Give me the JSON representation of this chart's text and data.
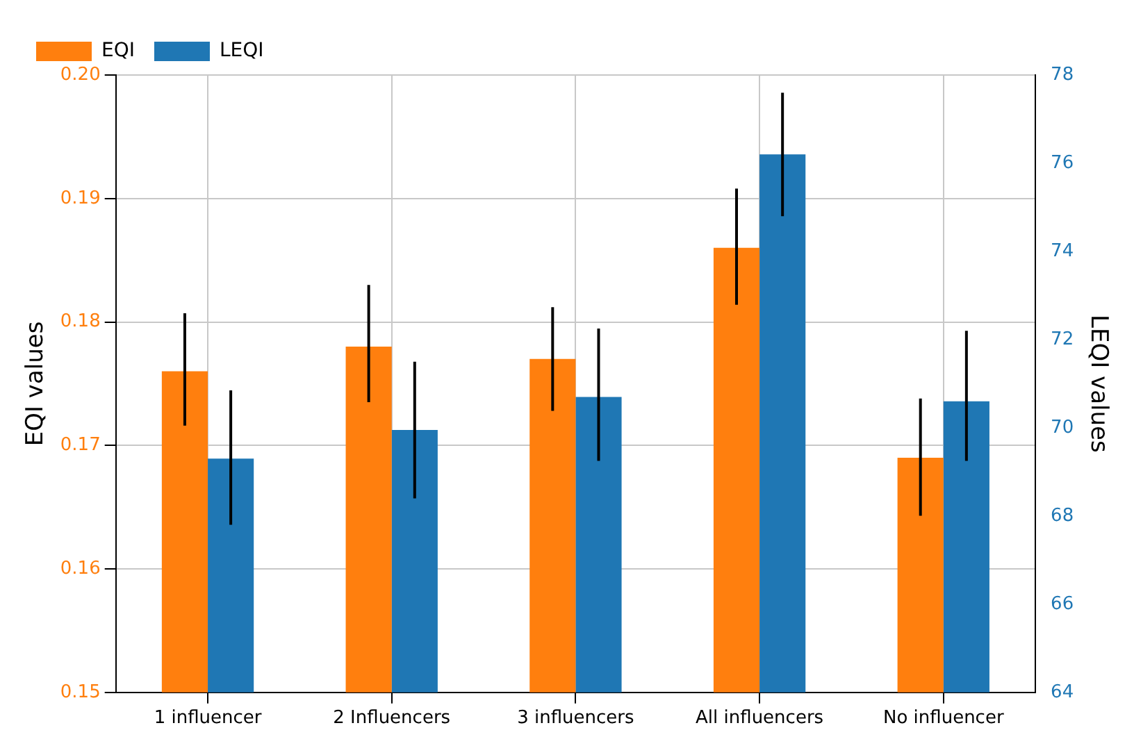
{
  "chart_data": {
    "type": "bar",
    "categories": [
      "1 influencer",
      "2 Influencers",
      "3 influencers",
      "All influencers",
      "No influencer"
    ],
    "ylabel": "EQI values",
    "y2label": "LEQI values",
    "series": [
      {
        "name": "EQI",
        "color": "#ff7f0e",
        "values": [
          0.176,
          0.178,
          0.177,
          0.186,
          0.169
        ],
        "errors": [
          [
            0.1716,
            0.1807
          ],
          [
            0.1735,
            0.183
          ],
          [
            0.1728,
            0.1812
          ],
          [
            0.1814,
            0.1908
          ],
          [
            0.1643,
            0.1738
          ]
        ]
      },
      {
        "name": "LEQI",
        "color": "#1f77b4",
        "axis": "y2",
        "values": [
          69.3,
          69.95,
          70.7,
          76.2,
          70.6
        ],
        "errors": [
          [
            67.8,
            70.85
          ],
          [
            68.4,
            71.5
          ],
          [
            69.25,
            72.25
          ],
          [
            74.8,
            77.6
          ],
          [
            69.25,
            72.2
          ]
        ]
      }
    ],
    "ylim": [
      0.15,
      0.2
    ],
    "yticks": [
      0.15,
      0.16,
      0.17,
      0.18,
      0.19,
      {
        "value": 0.2,
        "label": "0.20"
      }
    ],
    "y2lim": [
      64,
      78
    ],
    "y2ticks": [
      64,
      66,
      68,
      70,
      72,
      74,
      76,
      78
    ],
    "grid": true,
    "legend": "top left"
  }
}
